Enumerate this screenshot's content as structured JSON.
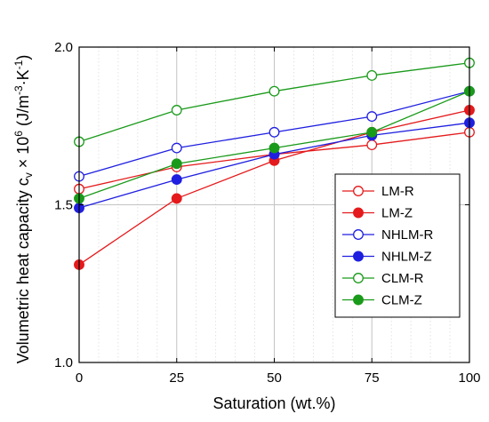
{
  "chart_data": {
    "type": "line",
    "xlabel": "Saturation (wt.%)",
    "ylabel": "Volumetric heat capacity c",
    "ylabel_sub": "v",
    "ylabel_rest": " × 10",
    "ylabel_exp": "6",
    "ylabel_units_open": " (J/m",
    "ylabel_units_exp": "-3",
    "ylabel_units_mid": "·K",
    "ylabel_units_exp2": "-1",
    "ylabel_units_close": ")",
    "xlim": [
      0,
      100
    ],
    "ylim": [
      1.0,
      2.0
    ],
    "x_ticks": [
      0,
      25,
      50,
      75,
      100
    ],
    "x_tick_labels": [
      "0",
      "25",
      "50",
      "75",
      "100"
    ],
    "y_ticks": [
      1.0,
      1.5,
      2.0
    ],
    "y_tick_labels": [
      "1.0",
      "1.5",
      "2.0"
    ],
    "grid": true,
    "legend_position": "center-right",
    "x": [
      0,
      25,
      50,
      75,
      100
    ],
    "series": [
      {
        "name": "LM-R",
        "color": "#e41a1c",
        "marker": "open",
        "values": [
          1.55,
          1.62,
          1.66,
          1.69,
          1.73
        ]
      },
      {
        "name": "LM-Z",
        "color": "#e41a1c",
        "marker": "filled",
        "values": [
          1.31,
          1.52,
          1.64,
          1.73,
          1.8
        ]
      },
      {
        "name": "NHLM-R",
        "color": "#1f1fe0",
        "marker": "open",
        "values": [
          1.59,
          1.68,
          1.73,
          1.78,
          1.86
        ]
      },
      {
        "name": "NHLM-Z",
        "color": "#1f1fe0",
        "marker": "filled",
        "values": [
          1.49,
          1.58,
          1.66,
          1.72,
          1.76
        ]
      },
      {
        "name": "CLM-R",
        "color": "#1a9a1a",
        "marker": "open",
        "values": [
          1.7,
          1.8,
          1.86,
          1.91,
          1.95
        ]
      },
      {
        "name": "CLM-Z",
        "color": "#1a9a1a",
        "marker": "filled",
        "values": [
          1.52,
          1.63,
          1.68,
          1.73,
          1.86
        ]
      }
    ]
  }
}
